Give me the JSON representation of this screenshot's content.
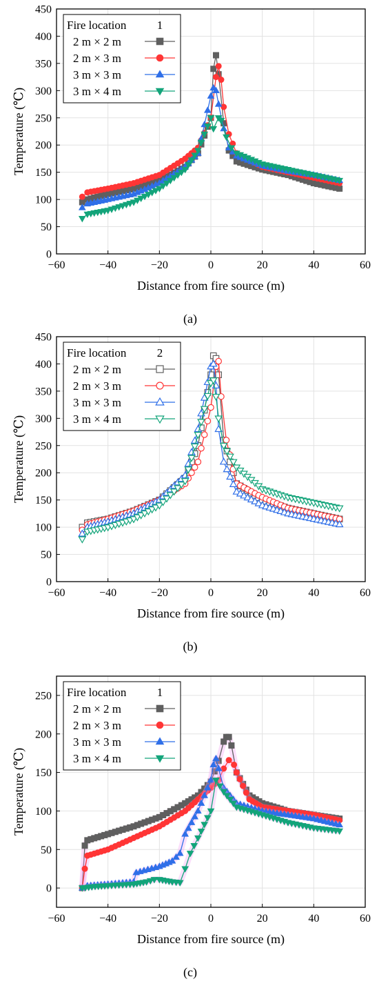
{
  "figure": {
    "panels": [
      {
        "tag": "(a)",
        "letter": "a"
      },
      {
        "tag": "(b)",
        "letter": "b"
      },
      {
        "tag": "(c)",
        "letter": "c"
      }
    ]
  },
  "colors": {
    "2 m × 2 m": "#5f5f5f",
    "2 m × 3 m": "#ff3535",
    "3 m × 3 m": "#2f6fe8",
    "3 m × 4 m": "#13a47a",
    "halo_c": "#f3a3f3"
  },
  "chart_data": [
    {
      "type": "line",
      "xlabel": "Distance from fire source (m)",
      "ylabel": "Temperature (℃)",
      "xlim": [
        -60,
        60
      ],
      "ylim": [
        0,
        450
      ],
      "xticks": [
        -60,
        -40,
        -20,
        0,
        20,
        40,
        60
      ],
      "yticks": [
        0,
        50,
        100,
        150,
        200,
        250,
        300,
        350,
        400,
        450
      ],
      "xticks_display": [
        "−60",
        "−40",
        "−20",
        "0",
        "20",
        "40",
        "60"
      ],
      "yticks_display": [
        "0",
        "50",
        "100",
        "150",
        "200",
        "250",
        "300",
        "350",
        "400",
        "450"
      ],
      "grid": true,
      "legend": {
        "position": "top-left",
        "title": "Fire location",
        "value": "1"
      },
      "marker_fill": "filled",
      "series": [
        {
          "name": "2 m × 2 m",
          "marker": "square",
          "x": [
            -50,
            -48,
            -40,
            -30,
            -20,
            -10,
            -5,
            0,
            1,
            2,
            3,
            5,
            7,
            10,
            20,
            30,
            40,
            50
          ],
          "y": [
            95,
            100,
            110,
            120,
            135,
            160,
            185,
            250,
            340,
            365,
            330,
            240,
            190,
            170,
            155,
            145,
            130,
            120
          ]
        },
        {
          "name": "2 m × 3 m",
          "marker": "circle",
          "x": [
            -50,
            -48,
            -40,
            -30,
            -20,
            -10,
            -5,
            0,
            2,
            3,
            4,
            5,
            7,
            10,
            20,
            30,
            40,
            50
          ],
          "y": [
            105,
            113,
            120,
            130,
            145,
            175,
            195,
            250,
            325,
            345,
            320,
            270,
            220,
            185,
            160,
            150,
            140,
            130
          ]
        },
        {
          "name": "3 m × 3 m",
          "marker": "triangle-up",
          "x": [
            -50,
            -48,
            -40,
            -30,
            -20,
            -10,
            -5,
            0,
            1,
            2,
            3,
            5,
            7,
            10,
            20,
            30,
            40,
            50
          ],
          "y": [
            85,
            92,
            100,
            110,
            130,
            160,
            185,
            290,
            305,
            300,
            275,
            230,
            195,
            180,
            162,
            152,
            145,
            135
          ]
        },
        {
          "name": "3 m × 4 m",
          "marker": "triangle-down",
          "x": [
            -50,
            -48,
            -40,
            -30,
            -20,
            -10,
            -5,
            0,
            1,
            3,
            4,
            6,
            8,
            10,
            20,
            30,
            40,
            50
          ],
          "y": [
            65,
            73,
            80,
            95,
            120,
            155,
            190,
            250,
            230,
            250,
            245,
            215,
            195,
            185,
            165,
            155,
            145,
            135
          ]
        }
      ]
    },
    {
      "type": "line",
      "xlabel": "Distance from fire source (m)",
      "ylabel": "Temperature (℃)",
      "xlim": [
        -60,
        60
      ],
      "ylim": [
        0,
        450
      ],
      "xticks": [
        -60,
        -40,
        -20,
        0,
        20,
        40,
        60
      ],
      "yticks": [
        0,
        50,
        100,
        150,
        200,
        250,
        300,
        350,
        400,
        450
      ],
      "xticks_display": [
        "−60",
        "−40",
        "−20",
        "0",
        "20",
        "40",
        "60"
      ],
      "yticks_display": [
        "0",
        "50",
        "100",
        "150",
        "200",
        "250",
        "300",
        "350",
        "400",
        "450"
      ],
      "grid": true,
      "legend": {
        "position": "top-left",
        "title": "Fire location",
        "value": "2"
      },
      "marker_fill": "hollow",
      "series": [
        {
          "name": "2 m × 2 m",
          "marker": "square",
          "x": [
            -50,
            -48,
            -40,
            -30,
            -20,
            -10,
            -5,
            0,
            1,
            2,
            3,
            5,
            10,
            20,
            30,
            40,
            50
          ],
          "y": [
            100,
            108,
            115,
            130,
            150,
            190,
            250,
            380,
            415,
            410,
            380,
            260,
            180,
            150,
            135,
            125,
            115
          ]
        },
        {
          "name": "2 m × 3 m",
          "marker": "circle",
          "x": [
            -50,
            -48,
            -40,
            -30,
            -20,
            -10,
            -5,
            0,
            2,
            3,
            4,
            6,
            10,
            20,
            30,
            40,
            50
          ],
          "y": [
            95,
            105,
            115,
            130,
            150,
            180,
            220,
            320,
            395,
            405,
            340,
            260,
            180,
            155,
            135,
            125,
            115
          ]
        },
        {
          "name": "3 m × 3 m",
          "marker": "triangle-up",
          "x": [
            -50,
            -48,
            -40,
            -30,
            -20,
            -10,
            -5,
            0,
            1,
            2,
            3,
            5,
            10,
            20,
            30,
            40,
            50
          ],
          "y": [
            88,
            100,
            110,
            125,
            150,
            195,
            280,
            395,
            400,
            360,
            280,
            220,
            165,
            140,
            125,
            115,
            105
          ]
        },
        {
          "name": "3 m × 4 m",
          "marker": "triangle-down",
          "x": [
            -50,
            -48,
            -40,
            -30,
            -20,
            -10,
            -5,
            0,
            1,
            2,
            3,
            5,
            10,
            20,
            30,
            40,
            50
          ],
          "y": [
            78,
            92,
            100,
            115,
            140,
            185,
            270,
            365,
            370,
            340,
            300,
            250,
            210,
            170,
            155,
            145,
            135
          ]
        }
      ]
    },
    {
      "type": "line",
      "xlabel": "Distance from fire source (m)",
      "ylabel": "Temperature (℃)",
      "xlim": [
        -60,
        60
      ],
      "ylim": [
        -25,
        275
      ],
      "xticks": [
        -60,
        -40,
        -20,
        0,
        20,
        40,
        60
      ],
      "yticks": [
        0,
        50,
        100,
        150,
        200,
        250
      ],
      "xticks_display": [
        "−60",
        "−40",
        "−20",
        "0",
        "20",
        "40",
        "60"
      ],
      "yticks_display": [
        "0",
        "50",
        "100",
        "150",
        "200",
        "250"
      ],
      "grid": true,
      "legend": {
        "position": "top-left",
        "title": "Fire location",
        "value": "1"
      },
      "marker_fill": "filled",
      "series": [
        {
          "name": "2 m × 2 m",
          "marker": "square",
          "x": [
            -50,
            -49,
            -48,
            -40,
            -30,
            -20,
            -10,
            -5,
            0,
            3,
            5,
            6,
            7,
            8,
            10,
            15,
            20,
            30,
            40,
            50
          ],
          "y": [
            0,
            55,
            62,
            70,
            80,
            92,
            110,
            120,
            138,
            165,
            190,
            196,
            196,
            185,
            150,
            120,
            110,
            100,
            95,
            90
          ]
        },
        {
          "name": "2 m × 3 m",
          "marker": "circle",
          "x": [
            -50,
            -49,
            -48,
            -40,
            -30,
            -20,
            -10,
            -5,
            0,
            3,
            5,
            7,
            9,
            10,
            15,
            20,
            30,
            40,
            50
          ],
          "y": [
            0,
            25,
            42,
            50,
            65,
            80,
            100,
            115,
            130,
            140,
            155,
            166,
            160,
            150,
            115,
            105,
            100,
            95,
            88
          ]
        },
        {
          "name": "3 m × 3 m",
          "marker": "triangle-up",
          "x": [
            -50,
            -48,
            -40,
            -30,
            -29,
            -20,
            -15,
            -12,
            -10,
            -5,
            0,
            1,
            2,
            3,
            5,
            10,
            20,
            30,
            40,
            50
          ],
          "y": [
            0,
            3,
            5,
            8,
            20,
            28,
            35,
            45,
            70,
            100,
            140,
            160,
            168,
            155,
            130,
            110,
            100,
            95,
            90,
            82
          ]
        },
        {
          "name": "3 m × 4 m",
          "marker": "triangle-down",
          "x": [
            -50,
            -45,
            -40,
            -30,
            -25,
            -22,
            -20,
            -15,
            -12,
            -10,
            -8,
            -5,
            0,
            2,
            5,
            10,
            20,
            30,
            40,
            50
          ],
          "y": [
            0,
            2,
            3,
            5,
            8,
            11,
            11,
            8,
            7,
            25,
            45,
            65,
            100,
            140,
            125,
            105,
            95,
            85,
            78,
            74
          ]
        }
      ]
    }
  ]
}
